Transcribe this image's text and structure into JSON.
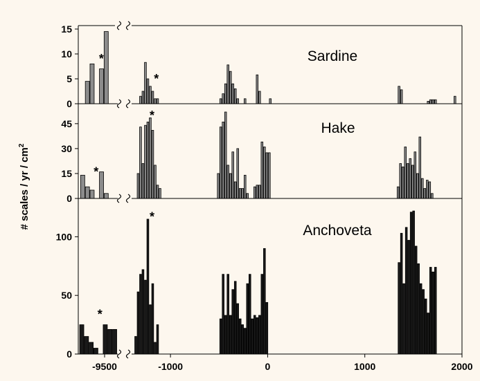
{
  "chart_data": {
    "type": "bar",
    "ylabel": "# scales / yr / cm",
    "ylabel_superscript": "2",
    "x_axis": {
      "broken": true,
      "left_segment": {
        "range": [
          -9640,
          -9430
        ],
        "ticks": [
          {
            "value": -9500,
            "label": "-9500"
          }
        ]
      },
      "right_segment": {
        "range": [
          -1400,
          2000
        ],
        "ticks": [
          {
            "value": -1000,
            "label": "-1000"
          },
          {
            "value": 0,
            "label": "0"
          },
          {
            "value": 1000,
            "label": "1000"
          },
          {
            "value": 2000,
            "label": "2000"
          }
        ]
      }
    },
    "panels": [
      {
        "title": "Sardine",
        "color": "#8c8c8c",
        "ylim": [
          0,
          15
        ],
        "yticks": [
          {
            "value": 0,
            "label": "0"
          },
          {
            "value": 5,
            "label": "5"
          },
          {
            "value": 10,
            "label": "10"
          },
          {
            "value": 15,
            "label": "15"
          }
        ],
        "star_label": "*",
        "stars": [
          {
            "x": -9517,
            "y": 9
          },
          {
            "x": -1145,
            "y": 5
          }
        ],
        "bars": [
          {
            "x": -9590,
            "value": 4.5
          },
          {
            "x": -9565,
            "value": 8
          },
          {
            "x": -9540,
            "value": 0
          },
          {
            "x": -9515,
            "value": 7
          },
          {
            "x": -9490,
            "value": 14.5
          },
          {
            "x": -1305,
            "value": 1.5
          },
          {
            "x": -1280,
            "value": 2.5
          },
          {
            "x": -1255,
            "value": 8.3
          },
          {
            "x": -1230,
            "value": 5
          },
          {
            "x": -1205,
            "value": 3.5
          },
          {
            "x": -1180,
            "value": 2.5
          },
          {
            "x": -1155,
            "value": 1
          },
          {
            "x": -1130,
            "value": 1
          },
          {
            "x": -480,
            "value": 1
          },
          {
            "x": -455,
            "value": 2
          },
          {
            "x": -430,
            "value": 4
          },
          {
            "x": -405,
            "value": 7.8
          },
          {
            "x": -380,
            "value": 6.5
          },
          {
            "x": -355,
            "value": 4
          },
          {
            "x": -330,
            "value": 3
          },
          {
            "x": -305,
            "value": 1
          },
          {
            "x": -230,
            "value": 1
          },
          {
            "x": -105,
            "value": 5.8
          },
          {
            "x": -80,
            "value": 2.5
          },
          {
            "x": 30,
            "value": 1
          },
          {
            "x": 1355,
            "value": 3.5
          },
          {
            "x": 1380,
            "value": 2.8
          },
          {
            "x": 1655,
            "value": 0.5
          },
          {
            "x": 1680,
            "value": 0.8
          },
          {
            "x": 1705,
            "value": 0.8
          },
          {
            "x": 1730,
            "value": 0.8
          },
          {
            "x": 1930,
            "value": 1.5
          }
        ]
      },
      {
        "title": "Hake",
        "color": "#8c8c8c",
        "ylim": [
          0,
          52
        ],
        "yticks": [
          {
            "value": 0,
            "label": "0"
          },
          {
            "value": 15,
            "label": "15"
          },
          {
            "value": 30,
            "label": "30"
          },
          {
            "value": 45,
            "label": "45"
          }
        ],
        "star_label": "*",
        "stars": [
          {
            "x": -9545,
            "y": 16
          },
          {
            "x": -1190,
            "y": 50
          }
        ],
        "bars": [
          {
            "x": -9615,
            "value": 14
          },
          {
            "x": -9590,
            "value": 7
          },
          {
            "x": -9565,
            "value": 5
          },
          {
            "x": -9540,
            "value": 0
          },
          {
            "x": -9515,
            "value": 16
          },
          {
            "x": -9490,
            "value": 3
          },
          {
            "x": -1330,
            "value": 15
          },
          {
            "x": -1305,
            "value": 43
          },
          {
            "x": -1280,
            "value": 21
          },
          {
            "x": -1255,
            "value": 44
          },
          {
            "x": -1230,
            "value": 46
          },
          {
            "x": -1205,
            "value": 48.5
          },
          {
            "x": -1180,
            "value": 41
          },
          {
            "x": -1155,
            "value": 20
          },
          {
            "x": -1130,
            "value": 8
          },
          {
            "x": -1105,
            "value": 6
          },
          {
            "x": -505,
            "value": 15
          },
          {
            "x": -480,
            "value": 43
          },
          {
            "x": -455,
            "value": 46
          },
          {
            "x": -430,
            "value": 52
          },
          {
            "x": -405,
            "value": 20
          },
          {
            "x": -380,
            "value": 15
          },
          {
            "x": -355,
            "value": 28
          },
          {
            "x": -330,
            "value": 10
          },
          {
            "x": -305,
            "value": 30
          },
          {
            "x": -280,
            "value": 6
          },
          {
            "x": -255,
            "value": 6
          },
          {
            "x": -230,
            "value": 14
          },
          {
            "x": -205,
            "value": 3
          },
          {
            "x": -130,
            "value": 7
          },
          {
            "x": -105,
            "value": 8
          },
          {
            "x": -80,
            "value": 8
          },
          {
            "x": -55,
            "value": 34
          },
          {
            "x": -30,
            "value": 31
          },
          {
            "x": -5,
            "value": 27.5
          },
          {
            "x": 20,
            "value": 27.5
          },
          {
            "x": 1345,
            "value": 7
          },
          {
            "x": 1370,
            "value": 21
          },
          {
            "x": 1395,
            "value": 19
          },
          {
            "x": 1420,
            "value": 31
          },
          {
            "x": 1445,
            "value": 21
          },
          {
            "x": 1470,
            "value": 24
          },
          {
            "x": 1495,
            "value": 20
          },
          {
            "x": 1520,
            "value": 28
          },
          {
            "x": 1545,
            "value": 15
          },
          {
            "x": 1570,
            "value": 37
          },
          {
            "x": 1595,
            "value": 12
          },
          {
            "x": 1620,
            "value": 6
          },
          {
            "x": 1645,
            "value": 11
          },
          {
            "x": 1670,
            "value": 10
          },
          {
            "x": 1695,
            "value": 3
          }
        ]
      },
      {
        "title": "Anchoveta",
        "color": "#1a1a1a",
        "ylim": [
          0,
          125
        ],
        "yticks": [
          {
            "value": 0,
            "label": "0"
          },
          {
            "value": 50,
            "label": "50"
          },
          {
            "value": 100,
            "label": "100"
          }
        ],
        "star_label": "*",
        "stars": [
          {
            "x": -9525,
            "y": 34
          },
          {
            "x": -1190,
            "y": 117
          }
        ],
        "bars": [
          {
            "x": -9620,
            "value": 25
          },
          {
            "x": -9595,
            "value": 15
          },
          {
            "x": -9570,
            "value": 10
          },
          {
            "x": -9545,
            "value": 5
          },
          {
            "x": -9520,
            "value": 0
          },
          {
            "x": -9495,
            "value": 25
          },
          {
            "x": -9470,
            "value": 21
          },
          {
            "x": -9445,
            "value": 21
          },
          {
            "x": -1355,
            "value": 15
          },
          {
            "x": -1330,
            "value": 53
          },
          {
            "x": -1305,
            "value": 68
          },
          {
            "x": -1280,
            "value": 72
          },
          {
            "x": -1255,
            "value": 63
          },
          {
            "x": -1230,
            "value": 115
          },
          {
            "x": -1205,
            "value": 42
          },
          {
            "x": -1180,
            "value": 60
          },
          {
            "x": -1155,
            "value": 10
          },
          {
            "x": -1130,
            "value": 25
          },
          {
            "x": -480,
            "value": 30
          },
          {
            "x": -455,
            "value": 68
          },
          {
            "x": -430,
            "value": 33
          },
          {
            "x": -405,
            "value": 68
          },
          {
            "x": -380,
            "value": 33
          },
          {
            "x": -355,
            "value": 55
          },
          {
            "x": -330,
            "value": 62
          },
          {
            "x": -305,
            "value": 43
          },
          {
            "x": -280,
            "value": 30
          },
          {
            "x": -255,
            "value": 25
          },
          {
            "x": -230,
            "value": 22
          },
          {
            "x": -205,
            "value": 60
          },
          {
            "x": -180,
            "value": 68
          },
          {
            "x": -155,
            "value": 30
          },
          {
            "x": -130,
            "value": 33
          },
          {
            "x": -105,
            "value": 31
          },
          {
            "x": -80,
            "value": 33
          },
          {
            "x": -55,
            "value": 68
          },
          {
            "x": -30,
            "value": 90
          },
          {
            "x": -5,
            "value": 44
          },
          {
            "x": 1355,
            "value": 78
          },
          {
            "x": 1380,
            "value": 103
          },
          {
            "x": 1405,
            "value": 60
          },
          {
            "x": 1430,
            "value": 108
          },
          {
            "x": 1455,
            "value": 97
          },
          {
            "x": 1480,
            "value": 121
          },
          {
            "x": 1505,
            "value": 122
          },
          {
            "x": 1530,
            "value": 92
          },
          {
            "x": 1555,
            "value": 77
          },
          {
            "x": 1580,
            "value": 60
          },
          {
            "x": 1605,
            "value": 55
          },
          {
            "x": 1630,
            "value": 47
          },
          {
            "x": 1655,
            "value": 35
          },
          {
            "x": 1680,
            "value": 74
          },
          {
            "x": 1705,
            "value": 70
          },
          {
            "x": 1730,
            "value": 74
          }
        ]
      }
    ]
  }
}
